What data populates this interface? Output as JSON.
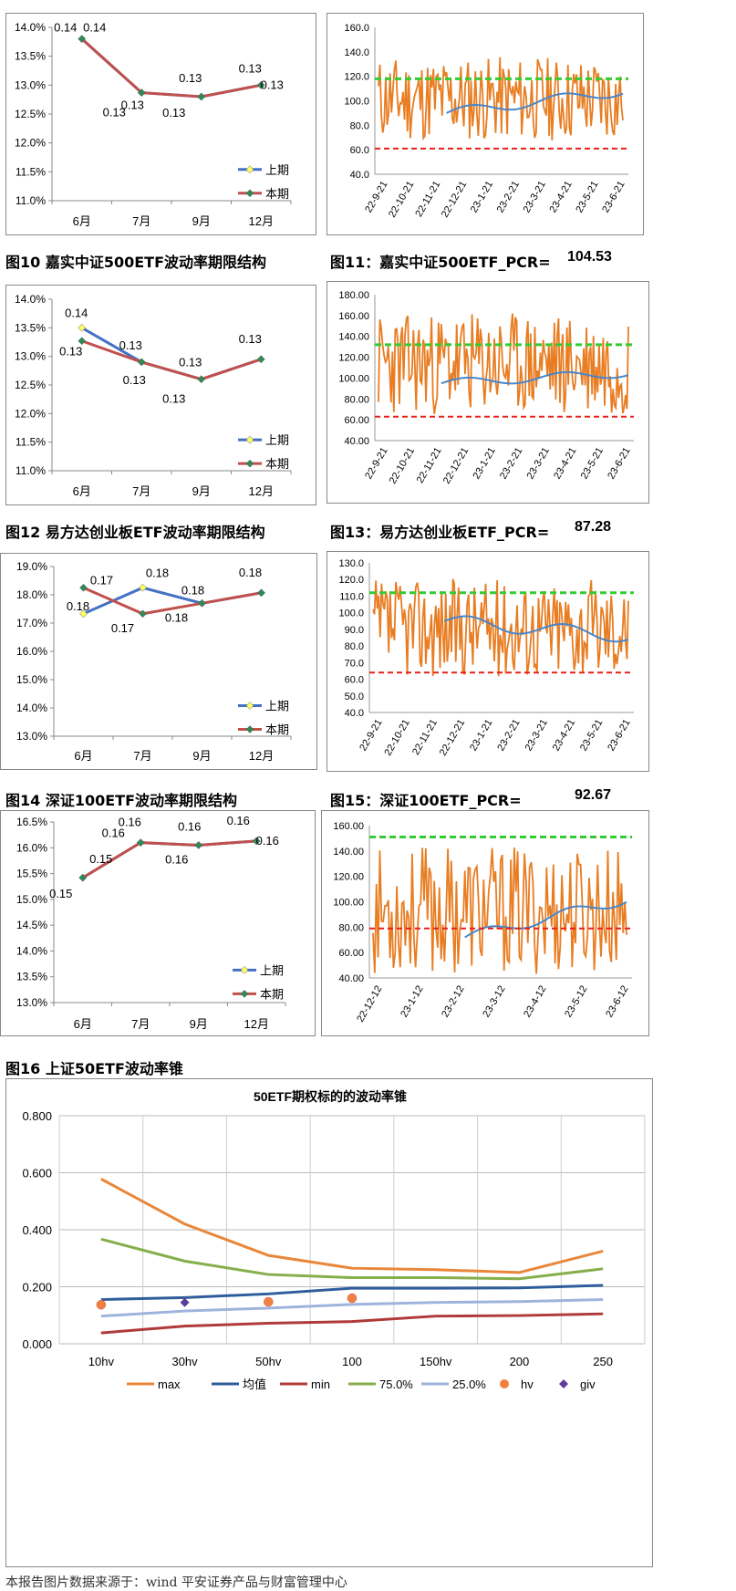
{
  "captions": {
    "fig10": "图10  嘉实中证500ETF波动率期限结构",
    "fig11": "图11：嘉实中证500ETF_PCR=",
    "fig11_value": "104.53",
    "fig12": "图12  易方达创业板ETF波动率期限结构",
    "fig13": "图13：易方达创业板ETF_PCR=",
    "fig13_value": "87.28",
    "fig14": "图14  深证100ETF波动率期限结构",
    "fig15": "图15：深证100ETF_PCR=",
    "fig15_value": "92.67",
    "fig16": "图16  上证50ETF波动率锥"
  },
  "footer": "本报告图片数据来源于：wind 平安证券产品与财富管理中心",
  "colors": {
    "prev": "#4472C4",
    "prev_marker": "#FFFF66",
    "curr": "#C0504D",
    "curr_marker": "#2E8B57",
    "pcr_line": "#E87D22",
    "pcr_ma": "#4A86C8",
    "upper_band": "#33CC33",
    "lower_band": "#E8201A"
  },
  "chart_data": [
    {
      "id": "term1",
      "type": "line",
      "categories": [
        "6月",
        "7月",
        "9月",
        "12月"
      ],
      "ylim": [
        0.11,
        0.14
      ],
      "yticks": [
        "14.0%",
        "13.5%",
        "13.0%",
        "12.5%",
        "12.0%",
        "11.5%",
        "11.0%"
      ],
      "series": [
        {
          "name": "上期",
          "values": [
            0.138,
            0.1287,
            0.128,
            0.13
          ]
        },
        {
          "name": "本期",
          "values": [
            0.138,
            0.1287,
            0.128,
            0.13
          ]
        }
      ],
      "data_labels": [
        "0.14",
        "0.14",
        "0.13",
        "0.13",
        "0.13",
        "0.13",
        "0.13",
        "0.13"
      ],
      "legend": "right"
    },
    {
      "id": "pcr1",
      "type": "line",
      "xticks": [
        "22-9-21",
        "22-10-21",
        "22-11-21",
        "22-12-21",
        "23-1-21",
        "23-2-21",
        "23-3-21",
        "23-4-21",
        "23-5-21",
        "23-6-21"
      ],
      "yticks": [
        "160.0",
        "140.0",
        "120.0",
        "100.0",
        "80.0",
        "60.0",
        "40.0"
      ],
      "ylim": [
        40,
        160
      ],
      "upper_band": 118,
      "lower_band": 61,
      "pcr_range": [
        65,
        138
      ],
      "ma_start": 90,
      "ma_end": 108
    },
    {
      "id": "term2",
      "type": "line",
      "categories": [
        "6月",
        "7月",
        "9月",
        "12月"
      ],
      "ylim": [
        0.11,
        0.14
      ],
      "yticks": [
        "14.0%",
        "13.5%",
        "13.0%",
        "12.5%",
        "12.0%",
        "11.5%",
        "11.0%"
      ],
      "series": [
        {
          "name": "上期",
          "values": [
            0.135,
            0.129,
            0.126,
            0.1295
          ]
        },
        {
          "name": "本期",
          "values": [
            0.1327,
            0.129,
            0.126,
            0.1295
          ]
        }
      ],
      "data_labels": [
        "0.14",
        "0.13",
        "0.13",
        "0.13",
        "0.13",
        "0.13",
        "0.13"
      ],
      "legend": "right"
    },
    {
      "id": "pcr2",
      "type": "line",
      "xticks": [
        "22-9-21",
        "22-10-21",
        "22-11-21",
        "22-12-21",
        "23-1-21",
        "23-2-21",
        "23-3-21",
        "23-4-21",
        "23-5-21",
        "23-6-21"
      ],
      "yticks": [
        "180.00",
        "160.00",
        "140.00",
        "120.00",
        "100.00",
        "80.00",
        "60.00",
        "40.00"
      ],
      "ylim": [
        40,
        180
      ],
      "upper_band": 132,
      "lower_band": 63,
      "pcr_range": [
        62,
        165
      ],
      "ma_start": 95,
      "ma_end": 105
    },
    {
      "id": "term3",
      "type": "line",
      "categories": [
        "6月",
        "7月",
        "9月",
        "12月"
      ],
      "ylim": [
        0.13,
        0.19
      ],
      "yticks": [
        "19.0%",
        "18.0%",
        "17.0%",
        "16.0%",
        "15.0%",
        "14.0%",
        "13.0%"
      ],
      "series": [
        {
          "name": "上期",
          "values": [
            0.1733,
            0.1825,
            0.177,
            0.1807
          ]
        },
        {
          "name": "本期",
          "values": [
            0.1825,
            0.1733,
            0.177,
            0.1807
          ]
        }
      ],
      "data_labels": [
        "0.18",
        "0.17",
        "0.18",
        "0.17",
        "0.18",
        "0.18",
        "0.18"
      ],
      "legend": "right"
    },
    {
      "id": "pcr3",
      "type": "line",
      "xticks": [
        "22-9-21",
        "22-10-21",
        "22-11-21",
        "22-12-21",
        "23-1-21",
        "23-2-21",
        "23-3-21",
        "23-4-21",
        "23-5-21",
        "23-6-21"
      ],
      "yticks": [
        "130.0",
        "120.0",
        "110.0",
        "100.0",
        "90.0",
        "80.0",
        "70.0",
        "60.0",
        "50.0",
        "40.0"
      ],
      "ylim": [
        40,
        130
      ],
      "upper_band": 112,
      "lower_band": 64,
      "pcr_range": [
        60,
        122
      ],
      "ma_start": 95,
      "ma_end": 86
    },
    {
      "id": "term4",
      "type": "line",
      "categories": [
        "6月",
        "7月",
        "9月",
        "12月"
      ],
      "ylim": [
        0.13,
        0.165
      ],
      "yticks": [
        "16.5%",
        "16.0%",
        "15.5%",
        "15.0%",
        "14.5%",
        "14.0%",
        "13.5%",
        "13.0%"
      ],
      "series": [
        {
          "name": "上期",
          "values": [
            0.1542,
            0.161,
            0.1605,
            0.1613
          ]
        },
        {
          "name": "本期",
          "values": [
            0.1542,
            0.161,
            0.1605,
            0.1613
          ]
        }
      ],
      "data_labels": [
        "0.15",
        "0.15",
        "0.16",
        "0.16",
        "0.16",
        "0.16",
        "0.16",
        "0.16"
      ],
      "legend": "right"
    },
    {
      "id": "pcr4",
      "type": "line",
      "xticks": [
        "22-12-12",
        "23-1-12",
        "23-2-12",
        "23-3-12",
        "23-4-12",
        "23-5-12",
        "23-6-12"
      ],
      "yticks": [
        "160.00",
        "140.00",
        "120.00",
        "100.00",
        "80.00",
        "60.00",
        "40.00"
      ],
      "ylim": [
        40,
        160
      ],
      "upper_band": 151,
      "lower_band": 79,
      "pcr_range": [
        40,
        146
      ],
      "ma_start": 72,
      "ma_end": 102
    },
    {
      "id": "cone",
      "type": "line",
      "title": "50ETF期权标的的波动率锥",
      "categories": [
        "10hv",
        "30hv",
        "50hv",
        "100",
        "150hv",
        "200",
        "250"
      ],
      "ylim": [
        0,
        0.8
      ],
      "yticks": [
        "0.800",
        "0.600",
        "0.400",
        "0.200",
        "0.000"
      ],
      "series": [
        {
          "name": "max",
          "values": [
            0.578,
            0.42,
            0.31,
            0.265,
            0.26,
            0.25,
            0.325
          ]
        },
        {
          "name": "均值",
          "values": [
            0.155,
            0.162,
            0.175,
            0.195,
            0.195,
            0.196,
            0.205
          ]
        },
        {
          "name": "min",
          "values": [
            0.038,
            0.062,
            0.072,
            0.078,
            0.097,
            0.099,
            0.105
          ]
        },
        {
          "name": "75.0%",
          "values": [
            0.367,
            0.29,
            0.243,
            0.232,
            0.232,
            0.228,
            0.263
          ]
        },
        {
          "name": "25.0%",
          "values": [
            0.097,
            0.115,
            0.125,
            0.138,
            0.145,
            0.148,
            0.155
          ]
        },
        {
          "name": "hv",
          "values": [
            0.137,
            null,
            0.147,
            0.16,
            null,
            null,
            null
          ]
        },
        {
          "name": "giv",
          "values": [
            null,
            0.145,
            null,
            null,
            null,
            null,
            null
          ]
        }
      ],
      "legend": "bottom"
    }
  ]
}
